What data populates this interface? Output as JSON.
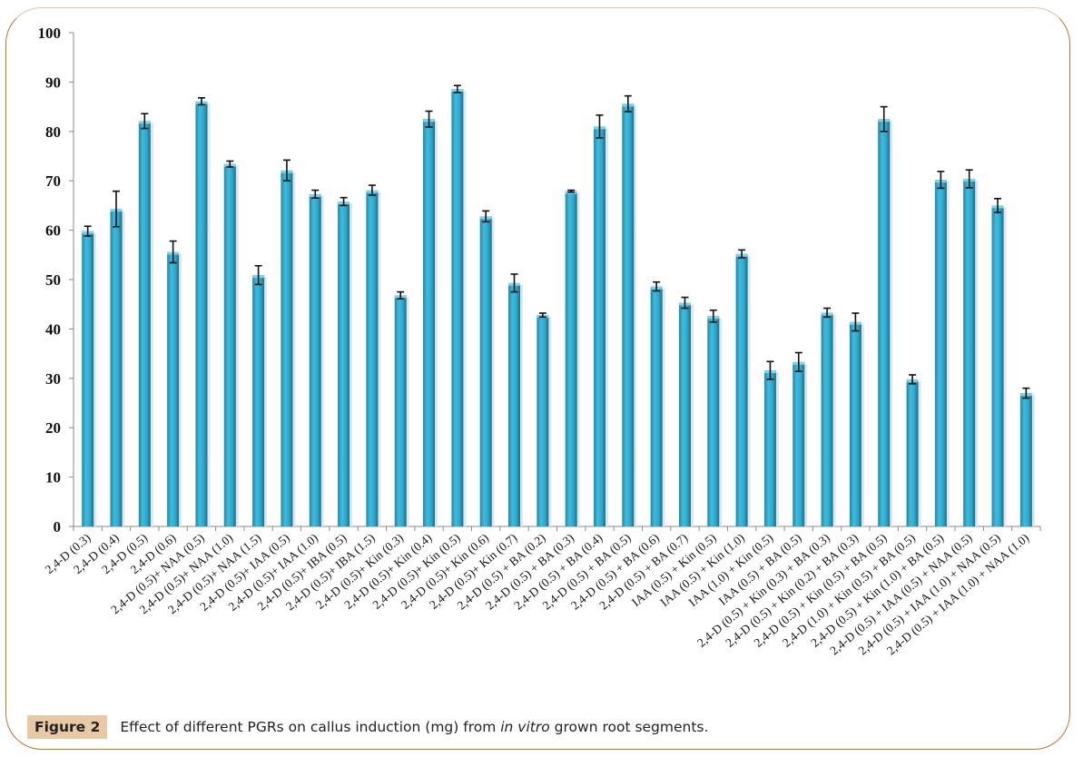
{
  "caption": {
    "label": "Figure 2",
    "text_before": "Effect of different PGRs on callus induction (mg) from ",
    "text_italic": "in vitro",
    "text_after": " grown root segments."
  },
  "colors": {
    "bar": "#35b2d6",
    "bar_dark": "#1f88a8",
    "error_bar": "#111111",
    "frame_border": "#b5762a",
    "caption_label_bg": "#e8c9a6"
  },
  "chart_data": {
    "type": "bar",
    "title": "",
    "xlabel": "",
    "ylabel": "",
    "ylim": [
      0,
      100
    ],
    "yticks": [
      0,
      10,
      20,
      30,
      40,
      50,
      60,
      70,
      80,
      90,
      100
    ],
    "grid": false,
    "legend": "none",
    "categories": [
      "2,4-D (0.3)",
      "2,4-D (0.4)",
      "2,4-D (0.5)",
      "2,4-D (0.6)",
      "2,4-D (0.5)+ NAA (0.5)",
      "2,4-D (0.5)+ NAA (1.0)",
      "2,4-D (0.5)+ NAA (1.5)",
      "2,4-D (0.5)+ IAA (0.5)",
      "2,4-D (0.5)+ IAA (1.0)",
      "2,4-D (0.5)+ IBA (0.5)",
      "2,4-D (0.5)+ IBA (1.5)",
      "2,4-D (0.5)+ Kin (0.3)",
      "2,4-D (0.5)+ Kin (0.4)",
      "2,4-D (0.5)+ Kin (0.5)",
      "2,4-D (0.5)+ Kin (0.6)",
      "2,4-D (0.5)+ Kin (0.7)",
      "2,4-D (0.5) + BA (0.2)",
      "2,4-D (0.5) + BA (0.3)",
      "2,4-D (0.5) + BA (0.4)",
      "2,4-D (0.5) + BA (0.5)",
      "2,4-D (0.5) + BA (0.6)",
      "2,4-D (0.5) + BA (0.7)",
      "IAA (0.5) + Kin (0.5)",
      "IAA (0.5) + Kin (1.0)",
      "IAA (1.0) + Kin (0.5)",
      "IAA (0.5) + BA (0.5)",
      "2,4-D (0.5) + Kin (0.3) + BA (0.3)",
      "2,4-D (0.5) + Kin (0.2) + BA (0.3)",
      "2,4-D (0.5) + Kin (0.5) + BA (0.5)",
      "2,4-D (1.0) + Kin (0.5) + BA (0.5)",
      "2,4-D (0.5) + Kin (1.0) + BA (0.5)",
      "2,4-D (0.5) + IAA (0.5) + NAA (0.5)",
      "2,4-D (0.5) + IAA (1.0) + NAA (0.5)",
      "2,4-D (0.5) + IAA (1.0) + NAA (1.0)"
    ],
    "values": [
      59.8,
      64.3,
      82.1,
      55.6,
      86.1,
      73.4,
      50.9,
      72.1,
      67.3,
      65.8,
      68.1,
      46.8,
      82.5,
      88.6,
      62.8,
      49.3,
      42.8,
      67.9,
      81.0,
      85.6,
      48.6,
      45.3,
      42.6,
      55.2,
      31.6,
      33.3,
      43.3,
      41.4,
      82.5,
      29.8,
      70.2,
      70.4,
      65.0,
      27.0
    ],
    "errors": [
      1.0,
      3.6,
      1.5,
      2.2,
      0.7,
      0.6,
      1.9,
      2.1,
      0.8,
      0.8,
      1.0,
      0.7,
      1.6,
      0.7,
      1.1,
      1.8,
      0.4,
      0.2,
      2.3,
      1.6,
      0.9,
      1.1,
      1.2,
      0.8,
      1.8,
      1.9,
      0.9,
      1.8,
      2.5,
      0.9,
      1.7,
      1.8,
      1.4,
      1.0
    ]
  }
}
